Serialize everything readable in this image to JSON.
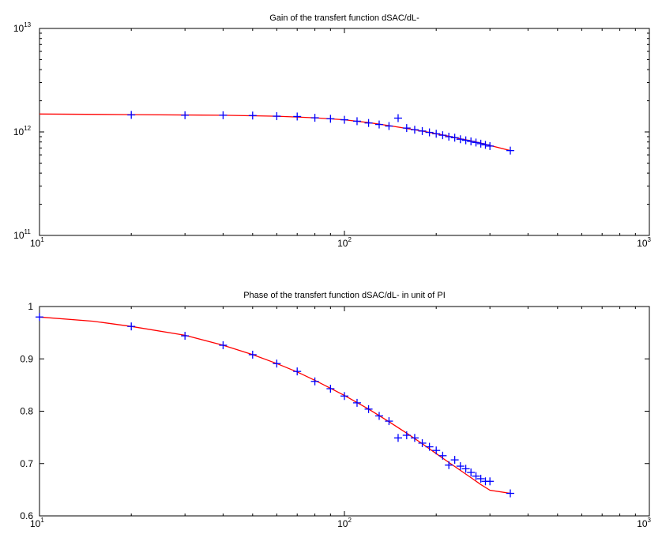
{
  "chart_data": [
    {
      "type": "scatter",
      "title": "Gain of the transfert function dSAC/dL-",
      "xlabel": "",
      "ylabel": "",
      "xscale": "log",
      "yscale": "log",
      "xlim": [
        10,
        1000
      ],
      "ylim": [
        100000000000.0,
        10000000000000.0
      ],
      "grid": false,
      "x_ticks": [
        {
          "base": "10",
          "exp": "1",
          "value": 10
        },
        {
          "base": "10",
          "exp": "2",
          "value": 100
        },
        {
          "base": "10",
          "exp": "3",
          "value": 1000
        }
      ],
      "y_ticks": [
        {
          "base": "10",
          "exp": "11",
          "value": 100000000000.0
        },
        {
          "base": "10",
          "exp": "12",
          "value": 1000000000000.0
        },
        {
          "base": "10",
          "exp": "13",
          "value": 10000000000000.0
        }
      ],
      "series": [
        {
          "kind": "markers",
          "marker": "+",
          "color": "#0000ff",
          "x": [
            20,
            30,
            40,
            50,
            60,
            70,
            80,
            90,
            100,
            110,
            120,
            130,
            140,
            150,
            160,
            170,
            180,
            190,
            200,
            210,
            220,
            230,
            240,
            250,
            260,
            270,
            280,
            290,
            300,
            350
          ],
          "y": [
            1460000000000.0,
            1450000000000.0,
            1450000000000.0,
            1440000000000.0,
            1420000000000.0,
            1410000000000.0,
            1370000000000.0,
            1340000000000.0,
            1310000000000.0,
            1270000000000.0,
            1220000000000.0,
            1180000000000.0,
            1140000000000.0,
            1360000000000.0,
            1090000000000.0,
            1050000000000.0,
            1020000000000.0,
            990000000000.0,
            960000000000.0,
            930000000000.0,
            900000000000.0,
            880000000000.0,
            850000000000.0,
            830000000000.0,
            810000000000.0,
            790000000000.0,
            770000000000.0,
            750000000000.0,
            730000000000.0,
            660000000000.0
          ]
        },
        {
          "kind": "line",
          "color": "#ff0000",
          "x": [
            10,
            20,
            40,
            60,
            80,
            100,
            120,
            140,
            160,
            180,
            200,
            220,
            240,
            260,
            280,
            300,
            350
          ],
          "y": [
            1490000000000.0,
            1470000000000.0,
            1450000000000.0,
            1420000000000.0,
            1370000000000.0,
            1310000000000.0,
            1230000000000.0,
            1150000000000.0,
            1080000000000.0,
            1020000000000.0,
            960000000000.0,
            910000000000.0,
            860000000000.0,
            820000000000.0,
            780000000000.0,
            740000000000.0,
            660000000000.0
          ]
        }
      ]
    },
    {
      "type": "scatter",
      "title": "Phase of the transfert function dSAC/dL- in unit of PI",
      "xlabel": "",
      "ylabel": "",
      "xscale": "log",
      "yscale": "linear",
      "xlim": [
        10,
        1000
      ],
      "ylim": [
        0.6,
        1.0
      ],
      "grid": false,
      "x_ticks": [
        {
          "base": "10",
          "exp": "1",
          "value": 10
        },
        {
          "base": "10",
          "exp": "2",
          "value": 100
        },
        {
          "base": "10",
          "exp": "3",
          "value": 1000
        }
      ],
      "y_ticks": [
        {
          "label": "0.6",
          "value": 0.6
        },
        {
          "label": "0.7",
          "value": 0.7
        },
        {
          "label": "0.8",
          "value": 0.8
        },
        {
          "label": "0.9",
          "value": 0.9
        },
        {
          "label": "1",
          "value": 1.0
        }
      ],
      "series": [
        {
          "kind": "markers",
          "marker": "+",
          "color": "#0000ff",
          "x": [
            10,
            20,
            30,
            40,
            50,
            60,
            70,
            80,
            90,
            100,
            110,
            120,
            130,
            140,
            150,
            160,
            170,
            180,
            190,
            200,
            210,
            220,
            230,
            240,
            250,
            260,
            270,
            280,
            290,
            300,
            350
          ],
          "y": [
            0.98,
            0.962,
            0.944,
            0.926,
            0.908,
            0.891,
            0.876,
            0.857,
            0.843,
            0.829,
            0.816,
            0.804,
            0.791,
            0.781,
            0.749,
            0.754,
            0.749,
            0.739,
            0.732,
            0.725,
            0.715,
            0.697,
            0.707,
            0.695,
            0.69,
            0.683,
            0.676,
            0.671,
            0.666,
            0.666,
            0.643
          ]
        },
        {
          "kind": "line",
          "color": "#ff0000",
          "x": [
            10,
            15,
            20,
            30,
            40,
            50,
            60,
            70,
            80,
            90,
            100,
            120,
            140,
            160,
            180,
            200,
            220,
            240,
            260,
            280,
            300,
            350
          ],
          "y": [
            0.98,
            0.972,
            0.962,
            0.945,
            0.926,
            0.908,
            0.891,
            0.875,
            0.859,
            0.844,
            0.83,
            0.804,
            0.78,
            0.758,
            0.738,
            0.719,
            0.702,
            0.687,
            0.673,
            0.66,
            0.649,
            0.643
          ]
        }
      ]
    }
  ]
}
